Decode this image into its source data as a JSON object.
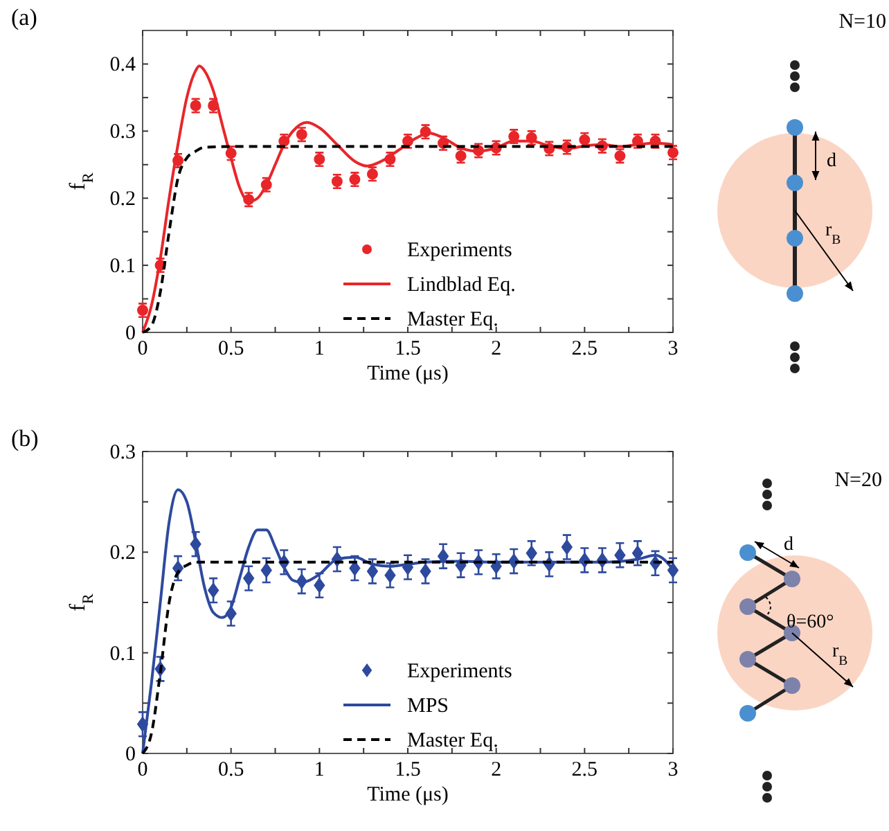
{
  "chart_data": [
    {
      "type": "line",
      "title": "(a)",
      "xlabel": "Time (μs)",
      "ylabel": "f$_{R}$",
      "xlim": [
        0,
        3
      ],
      "ylim": [
        0,
        0.45
      ],
      "xticks": [
        0,
        {
          "value": 0.25,
          "label": null
        },
        0.5,
        {
          "value": 0.75,
          "label": null
        },
        1,
        {
          "value": 1.25,
          "label": null
        },
        1.5,
        {
          "value": 1.75,
          "label": null
        },
        2,
        {
          "value": 2.25,
          "label": null
        },
        2.5,
        {
          "value": 2.75,
          "label": null
        },
        3
      ],
      "yticks": [
        0,
        {
          "value": 0.05,
          "label": null
        },
        0.1,
        {
          "value": 0.15,
          "label": null
        },
        0.2,
        {
          "value": 0.25,
          "label": null
        },
        0.3,
        {
          "value": 0.35,
          "label": null
        },
        0.4
      ],
      "legend": "bottom right",
      "grid": false,
      "annotations": [
        "N=10",
        "d",
        "r$_{B}$"
      ],
      "series": [
        {
          "name": "Experiments",
          "type": "scatter",
          "marker": "circle",
          "color": "#e8262a",
          "x": [
            0,
            0.1,
            0.2,
            0.3,
            0.4,
            0.5,
            0.6,
            0.7,
            0.8,
            0.9,
            1,
            1.1,
            1.2,
            1.3,
            1.4,
            1.5,
            1.6,
            1.7,
            1.8,
            1.9,
            2,
            2.1,
            2.2,
            2.3,
            2.4,
            2.5,
            2.6,
            2.7,
            2.8,
            2.9,
            3
          ],
          "values": [
            0.033,
            0.1,
            0.256,
            0.338,
            0.338,
            0.267,
            0.198,
            0.22,
            0.285,
            0.295,
            0.258,
            0.225,
            0.228,
            0.236,
            0.258,
            0.285,
            0.299,
            0.282,
            0.263,
            0.271,
            0.275,
            0.292,
            0.29,
            0.274,
            0.276,
            0.287,
            0.278,
            0.263,
            0.285,
            0.285,
            0.268
          ],
          "errors": [
            0.01,
            0.01,
            0.01,
            0.01,
            0.01,
            0.01,
            0.01,
            0.01,
            0.01,
            0.01,
            0.01,
            0.01,
            0.01,
            0.01,
            0.01,
            0.01,
            0.01,
            0.01,
            0.01,
            0.01,
            0.01,
            0.01,
            0.01,
            0.01,
            0.01,
            0.01,
            0.01,
            0.01,
            0.01,
            0.01,
            0.01
          ]
        },
        {
          "name": "Lindblad Eq.",
          "type": "line",
          "line_style": "solid",
          "color": "#e8262a",
          "x": [
            0,
            0.05,
            0.1,
            0.15,
            0.2,
            0.25,
            0.3,
            0.32,
            0.35,
            0.4,
            0.45,
            0.5,
            0.55,
            0.6,
            0.65,
            0.7,
            0.75,
            0.8,
            0.85,
            0.93,
            1,
            1.1,
            1.2,
            1.27,
            1.35,
            1.45,
            1.55,
            1.62,
            1.7,
            1.8,
            1.9,
            2,
            2.1,
            2.2,
            2.3,
            2.4,
            2.5,
            2.6,
            2.7,
            2.8,
            2.9,
            3
          ],
          "values": [
            0,
            0.04,
            0.11,
            0.2,
            0.28,
            0.35,
            0.39,
            0.397,
            0.39,
            0.36,
            0.31,
            0.26,
            0.215,
            0.195,
            0.2,
            0.22,
            0.25,
            0.28,
            0.3,
            0.313,
            0.305,
            0.28,
            0.255,
            0.248,
            0.255,
            0.272,
            0.29,
            0.297,
            0.29,
            0.275,
            0.27,
            0.275,
            0.285,
            0.285,
            0.278,
            0.274,
            0.278,
            0.28,
            0.277,
            0.28,
            0.282,
            0.28
          ]
        },
        {
          "name": "Master Eq.",
          "type": "line",
          "line_style": "dashed",
          "color": "#000000",
          "x": [
            0,
            0.05,
            0.1,
            0.15,
            0.2,
            0.25,
            0.3,
            0.35,
            0.5,
            3
          ],
          "values": [
            0,
            0.01,
            0.06,
            0.15,
            0.23,
            0.26,
            0.27,
            0.276,
            0.277,
            0.277
          ]
        }
      ]
    },
    {
      "type": "line",
      "title": "(b)",
      "xlabel": "Time (μs)",
      "ylabel": "f$_{R}$",
      "xlim": [
        0,
        3
      ],
      "ylim": [
        0,
        0.3
      ],
      "xticks": [
        0,
        {
          "value": 0.25,
          "label": null
        },
        0.5,
        {
          "value": 0.75,
          "label": null
        },
        1,
        {
          "value": 1.25,
          "label": null
        },
        1.5,
        {
          "value": 1.75,
          "label": null
        },
        2,
        {
          "value": 2.25,
          "label": null
        },
        2.5,
        {
          "value": 2.75,
          "label": null
        },
        3
      ],
      "yticks": [
        0,
        {
          "value": 0.05,
          "label": null
        },
        0.1,
        {
          "value": 0.15,
          "label": null
        },
        0.2,
        {
          "value": 0.25,
          "label": null
        },
        0.3
      ],
      "legend": "bottom right",
      "grid": false,
      "annotations": [
        "N=20",
        "d",
        "θ=60°",
        "r$_{B}$"
      ],
      "series": [
        {
          "name": "Experiments",
          "type": "scatter",
          "marker": "diamond",
          "color": "#2e4a9e",
          "x": [
            0,
            0.1,
            0.2,
            0.3,
            0.4,
            0.5,
            0.6,
            0.7,
            0.8,
            0.9,
            1,
            1.1,
            1.2,
            1.3,
            1.4,
            1.5,
            1.6,
            1.7,
            1.8,
            1.9,
            2,
            2.1,
            2.2,
            2.3,
            2.4,
            2.5,
            2.6,
            2.7,
            2.8,
            2.9,
            3
          ],
          "values": [
            0.029,
            0.084,
            0.184,
            0.208,
            0.162,
            0.139,
            0.174,
            0.182,
            0.19,
            0.171,
            0.167,
            0.193,
            0.184,
            0.181,
            0.177,
            0.185,
            0.181,
            0.196,
            0.187,
            0.19,
            0.186,
            0.191,
            0.199,
            0.188,
            0.205,
            0.192,
            0.192,
            0.197,
            0.199,
            0.189,
            0.182
          ],
          "errors": [
            0.012,
            0.012,
            0.012,
            0.012,
            0.012,
            0.012,
            0.012,
            0.012,
            0.012,
            0.012,
            0.012,
            0.012,
            0.012,
            0.012,
            0.012,
            0.012,
            0.012,
            0.012,
            0.012,
            0.012,
            0.012,
            0.012,
            0.012,
            0.012,
            0.012,
            0.012,
            0.012,
            0.012,
            0.012,
            0.012,
            0.012
          ]
        },
        {
          "name": "MPS",
          "type": "line",
          "line_style": "solid",
          "color": "#2e4a9e",
          "x": [
            0,
            0.05,
            0.1,
            0.15,
            0.2,
            0.25,
            0.3,
            0.35,
            0.4,
            0.45,
            0.5,
            0.55,
            0.6,
            0.65,
            0.7,
            0.75,
            0.8,
            0.85,
            0.9,
            1,
            1.1,
            1.2,
            1.3,
            1.4,
            1.5,
            1.6,
            1.8,
            2,
            2.2,
            2.4,
            2.6,
            2.8,
            2.9,
            3
          ],
          "values": [
            0,
            0.07,
            0.15,
            0.23,
            0.262,
            0.25,
            0.21,
            0.165,
            0.14,
            0.135,
            0.145,
            0.175,
            0.205,
            0.222,
            0.222,
            0.205,
            0.185,
            0.172,
            0.17,
            0.178,
            0.193,
            0.195,
            0.188,
            0.186,
            0.188,
            0.19,
            0.191,
            0.19,
            0.19,
            0.19,
            0.19,
            0.193,
            0.197,
            0.183
          ]
        },
        {
          "name": "Master Eq.",
          "type": "line",
          "line_style": "dashed",
          "color": "#000000",
          "x": [
            0,
            0.05,
            0.1,
            0.15,
            0.2,
            0.25,
            0.3,
            3
          ],
          "values": [
            0,
            0.02,
            0.08,
            0.15,
            0.18,
            0.187,
            0.19,
            0.19
          ]
        }
      ]
    }
  ]
}
